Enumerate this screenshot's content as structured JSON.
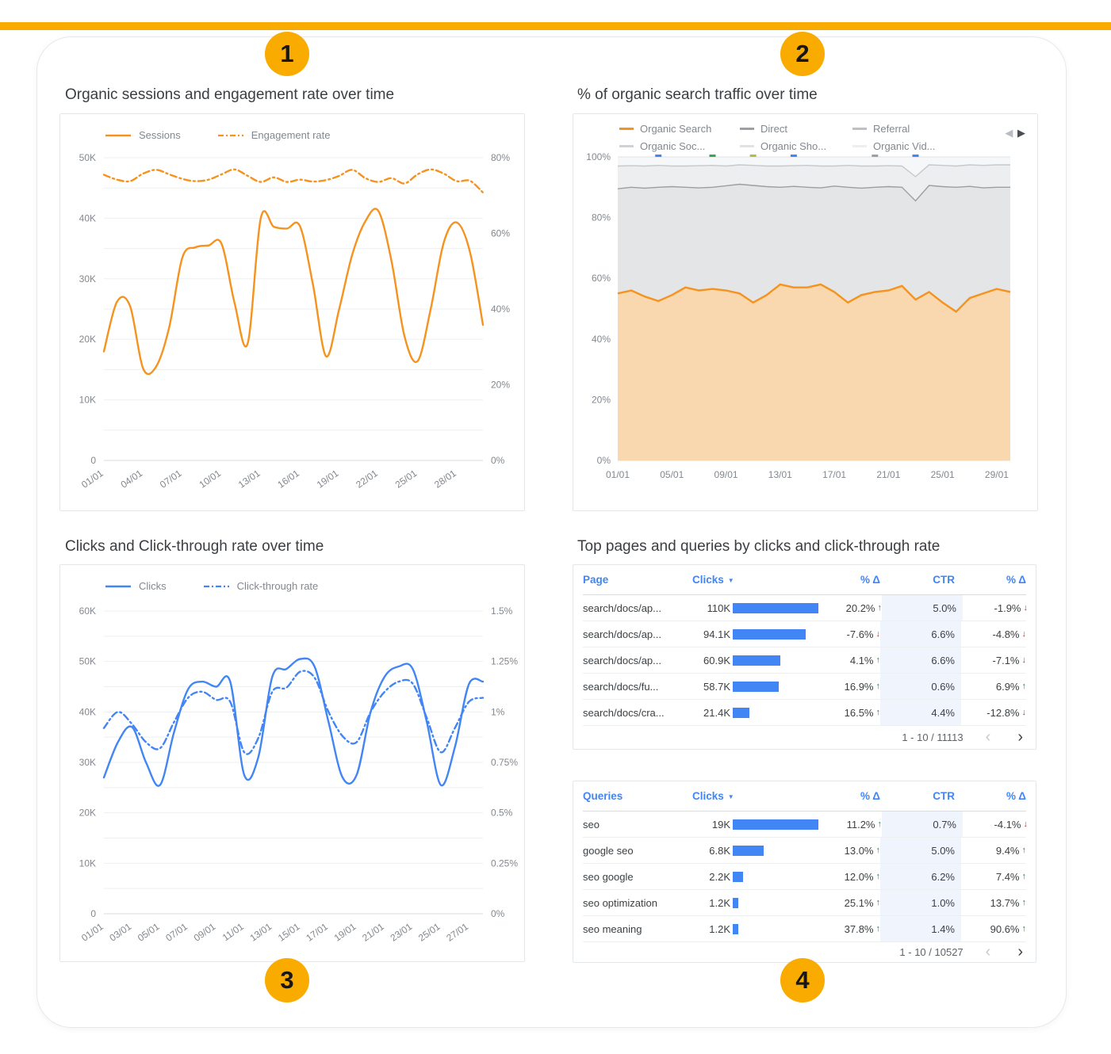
{
  "page": {
    "gold": "#F9AB00",
    "badges": [
      {
        "label": "1"
      },
      {
        "label": "2"
      },
      {
        "label": "3"
      },
      {
        "label": "4"
      }
    ]
  },
  "panels": {
    "tables_title": "Top pages and queries by clicks and click-through rate"
  },
  "icons": {
    "legend_prev": "◀",
    "legend_next": "▶",
    "sort_desc": "▼",
    "page_prev": "‹",
    "page_next": "›"
  },
  "chart_data": [
    {
      "id": "sessions",
      "type": "line",
      "title": "Organic sessions and engagement rate over time",
      "n_points": 30,
      "x_tick_labels": [
        "01/01",
        "04/01",
        "07/01",
        "10/01",
        "13/01",
        "16/01",
        "19/01",
        "22/01",
        "25/01",
        "28/01"
      ],
      "x_tick_every": 3,
      "grid": true,
      "legend_position": "top-left",
      "y_left": {
        "max": 50,
        "unit": "K",
        "tick_labels": [
          "0",
          "10K",
          "20K",
          "30K",
          "40K",
          "50K"
        ]
      },
      "y_right": {
        "max": 80,
        "unit": "%",
        "tick_labels": [
          "0%",
          "20%",
          "40%",
          "60%",
          "80%"
        ]
      },
      "series": [
        {
          "name": "Sessions",
          "axis": "left",
          "dash": "solid",
          "color": "#F6921E",
          "values": [
            18,
            26.2,
            25.5,
            15.2,
            15.5,
            22,
            33.5,
            35.2,
            35.5,
            35.8,
            26,
            19.3,
            40,
            38.6,
            38.3,
            38.7,
            29,
            17.2,
            25,
            34,
            39.5,
            41.2,
            33,
            20.5,
            16.4,
            25,
            36,
            39.3,
            34.5,
            22.4
          ]
        },
        {
          "name": "Engagement rate",
          "axis": "right",
          "dash": "dashdot",
          "color": "#F6921E",
          "values": [
            75.5,
            74.2,
            73.8,
            75.8,
            76.8,
            75.6,
            74.4,
            73.8,
            74.2,
            75.6,
            76.9,
            75.2,
            73.6,
            74.8,
            73.6,
            74.2,
            73.7,
            74.1,
            75.2,
            76.8,
            74.6,
            73.6,
            74.6,
            73.2,
            75.6,
            76.9,
            75.8,
            73.8,
            73.9,
            70.8
          ]
        }
      ]
    },
    {
      "id": "traffic",
      "type": "stacked_area",
      "title": "% of organic search traffic over time",
      "n_points": 30,
      "x_tick_labels": [
        "01/01",
        "05/01",
        "09/01",
        "13/01",
        "17/01",
        "21/01",
        "25/01",
        "29/01"
      ],
      "x_tick_every": 4,
      "y_tick_labels": [
        "0%",
        "20%",
        "40%",
        "60%",
        "80%",
        "100%"
      ],
      "unit": "%",
      "legend": [
        {
          "label": "Organic Search",
          "color": "#F6921E"
        },
        {
          "label": "Direct",
          "color": "#9AA0A6"
        },
        {
          "label": "Referral",
          "color": "#BDC1C6"
        },
        {
          "label": "Organic Soc...",
          "color": "#CFD3D7"
        },
        {
          "label": "Organic Sho...",
          "color": "#E0E2E5"
        },
        {
          "label": "Organic Vid...",
          "color": "#ECEEF0"
        }
      ],
      "bands": [
        {
          "name": "Organic Search",
          "line": "#F6921E",
          "fill": "#FAD8AF",
          "values": [
            55,
            56,
            54,
            52.5,
            54.5,
            57,
            56,
            56.5,
            56,
            55,
            52,
            54.5,
            58,
            57,
            57,
            58,
            55.5,
            52,
            54.5,
            55.5,
            56,
            57.5,
            53,
            55.5,
            52,
            49,
            53.5,
            55,
            56.5,
            55.5
          ]
        },
        {
          "name": "Direct",
          "line": "#9E9E9E",
          "fill": "#E4E5E6",
          "values": [
            89.5,
            90,
            89.7,
            90,
            90.2,
            90,
            89.8,
            90,
            90.5,
            91,
            90.6,
            90.2,
            90,
            90.3,
            90,
            89.8,
            90.4,
            90,
            89.7,
            90,
            90.2,
            90,
            85.5,
            90.6,
            90.2,
            90,
            90.3,
            89.8,
            90,
            90
          ]
        },
        {
          "name": "Referral",
          "line": "#C6C9CC",
          "fill": "#EDEEEF",
          "values": [
            97,
            97.1,
            97,
            97.2,
            97,
            97,
            97.1,
            97.2,
            97,
            97.4,
            97.2,
            97,
            97,
            97.1,
            97.2,
            97,
            97,
            97.2,
            97,
            97,
            97.1,
            97,
            93.5,
            97.4,
            97.2,
            97,
            97.4,
            97.2,
            97.4,
            97.4
          ]
        }
      ],
      "remainder_fill": "#F6F7F8",
      "point_marks": [
        {
          "i": 3,
          "color": "#4285F4"
        },
        {
          "i": 7,
          "color": "#34A853"
        },
        {
          "i": 10,
          "color": "#B5BB46"
        },
        {
          "i": 13,
          "color": "#4285F4"
        },
        {
          "i": 19,
          "color": "#9AA0A6"
        },
        {
          "i": 22,
          "color": "#4285F4"
        }
      ]
    },
    {
      "id": "clicks",
      "type": "line",
      "title": "Clicks and Click-through rate over time",
      "n_points": 28,
      "x_tick_labels": [
        "01/01",
        "03/01",
        "05/01",
        "07/01",
        "09/01",
        "11/01",
        "13/01",
        "15/01",
        "17/01",
        "19/01",
        "21/01",
        "23/01",
        "25/01",
        "27/01"
      ],
      "x_tick_every": 2,
      "grid": true,
      "legend_position": "top-left",
      "y_left": {
        "max": 60,
        "unit": "K",
        "tick_labels": [
          "0",
          "10K",
          "20K",
          "30K",
          "40K",
          "50K",
          "60K"
        ]
      },
      "y_right": {
        "max": 1.5,
        "unit": "%",
        "tick_labels": [
          "0%",
          "0.25%",
          "0.5%",
          "0.75%",
          "1%",
          "1.25%",
          "1.5%"
        ]
      },
      "series": [
        {
          "name": "Clicks",
          "axis": "left",
          "dash": "solid",
          "color": "#4285F4",
          "values": [
            27,
            34,
            37,
            30,
            25.5,
            36,
            44.5,
            46,
            45,
            46,
            27.5,
            31,
            47,
            48.5,
            50.5,
            49,
            38,
            27,
            27.5,
            40,
            47,
            49,
            48.5,
            38,
            25.5,
            33,
            45.5,
            46
          ]
        },
        {
          "name": "Click-through rate",
          "axis": "right",
          "dash": "dashdot",
          "color": "#4285F4",
          "values": [
            0.92,
            1,
            0.94,
            0.85,
            0.82,
            0.95,
            1.07,
            1.1,
            1.06,
            1.05,
            0.8,
            0.87,
            1.1,
            1.12,
            1.2,
            1.17,
            1,
            0.88,
            0.85,
            1,
            1.1,
            1.15,
            1.14,
            0.97,
            0.8,
            0.92,
            1.05,
            1.07
          ]
        }
      ]
    }
  ],
  "tables": {
    "pages": {
      "columns": [
        "Page",
        "Clicks",
        "% Δ",
        "CTR",
        "% Δ"
      ],
      "rows": [
        {
          "label": "search/docs/ap...",
          "clicks": "110K",
          "clicks_value": 110,
          "delta": "20.2%",
          "delta_dir": "up",
          "ctr": "5.0%",
          "ctr_delta": "-1.9%",
          "ctr_delta_dir": "down"
        },
        {
          "label": "search/docs/ap...",
          "clicks": "94.1K",
          "clicks_value": 94.1,
          "delta": "-7.6%",
          "delta_dir": "down",
          "ctr": "6.6%",
          "ctr_delta": "-4.8%",
          "ctr_delta_dir": "down"
        },
        {
          "label": "search/docs/ap...",
          "clicks": "60.9K",
          "clicks_value": 60.9,
          "delta": "4.1%",
          "delta_dir": "up",
          "ctr": "6.6%",
          "ctr_delta": "-7.1%",
          "ctr_delta_dir": "down"
        },
        {
          "label": "search/docs/fu...",
          "clicks": "58.7K",
          "clicks_value": 58.7,
          "delta": "16.9%",
          "delta_dir": "up",
          "ctr": "0.6%",
          "ctr_delta": "6.9%",
          "ctr_delta_dir": "up"
        },
        {
          "label": "search/docs/cra...",
          "clicks": "21.4K",
          "clicks_value": 21.4,
          "delta": "16.5%",
          "delta_dir": "up",
          "ctr": "4.4%",
          "ctr_delta": "-12.8%",
          "ctr_delta_dir": "down"
        }
      ],
      "pagination": "1 - 10 / 11113"
    },
    "queries": {
      "columns": [
        "Queries",
        "Clicks",
        "% Δ",
        "CTR",
        "% Δ"
      ],
      "rows": [
        {
          "label": "seo",
          "clicks": "19K",
          "clicks_value": 19,
          "delta": "11.2%",
          "delta_dir": "up",
          "ctr": "0.7%",
          "ctr_delta": "-4.1%",
          "ctr_delta_dir": "down"
        },
        {
          "label": "google seo",
          "clicks": "6.8K",
          "clicks_value": 6.8,
          "delta": "13.0%",
          "delta_dir": "up",
          "ctr": "5.0%",
          "ctr_delta": "9.4%",
          "ctr_delta_dir": "up"
        },
        {
          "label": "seo google",
          "clicks": "2.2K",
          "clicks_value": 2.2,
          "delta": "12.0%",
          "delta_dir": "up",
          "ctr": "6.2%",
          "ctr_delta": "7.4%",
          "ctr_delta_dir": "up"
        },
        {
          "label": "seo optimization",
          "clicks": "1.2K",
          "clicks_value": 1.2,
          "delta": "25.1%",
          "delta_dir": "up",
          "ctr": "1.0%",
          "ctr_delta": "13.7%",
          "ctr_delta_dir": "up"
        },
        {
          "label": "seo meaning",
          "clicks": "1.2K",
          "clicks_value": 1.2,
          "delta": "37.8%",
          "delta_dir": "up",
          "ctr": "1.4%",
          "ctr_delta": "90.6%",
          "ctr_delta_dir": "up"
        }
      ],
      "pagination": "1 - 10 / 10527"
    }
  }
}
